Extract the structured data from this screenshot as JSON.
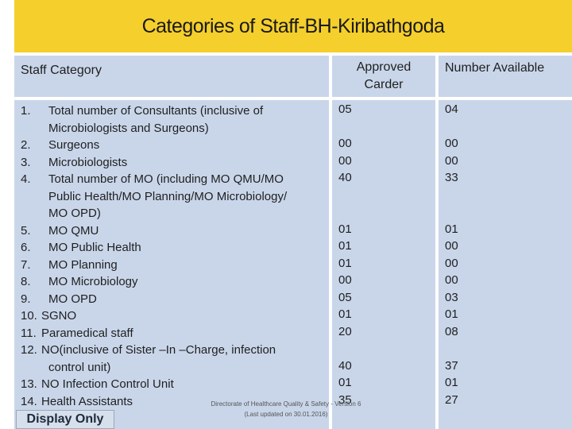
{
  "title": "Categories of Staff-BH-Kiribathgoda",
  "headers": {
    "category": "Staff Category",
    "approved_line1": "Approved",
    "approved_line2": "Carder",
    "available": "Number Available"
  },
  "rows": [
    {
      "num": "1.",
      "lines": [
        "Total number of Consultants (inclusive of",
        "Microbiologists and Surgeons)"
      ],
      "approved": "05",
      "available": "04"
    },
    {
      "num": "2.",
      "lines": [
        "Surgeons"
      ],
      "approved": "00",
      "available": "00"
    },
    {
      "num": "3.",
      "lines": [
        "Microbiologists"
      ],
      "approved": "00",
      "available": "00"
    },
    {
      "num": "4.",
      "lines": [
        "Total number of MO (including MO QMU/MO",
        "Public Health/MO Planning/MO Microbiology/",
        "MO OPD)"
      ],
      "approved": "40",
      "available": "33"
    },
    {
      "num": "5.",
      "lines": [
        "MO QMU"
      ],
      "approved": "01",
      "available": "01"
    },
    {
      "num": "6.",
      "lines": [
        "MO Public Health"
      ],
      "approved": "01",
      "available": "00"
    },
    {
      "num": "7.",
      "lines": [
        "MO Planning"
      ],
      "approved": "01",
      "available": "00"
    },
    {
      "num": "8.",
      "lines": [
        "MO Microbiology"
      ],
      "approved": "00",
      "available": "00"
    },
    {
      "num": "9.",
      "lines": [
        "MO OPD"
      ],
      "approved": "05",
      "available": "03"
    },
    {
      "num": "10.",
      "lines": [
        "SGNO"
      ],
      "approved": "01",
      "available": "01"
    },
    {
      "num": "11.",
      "lines": [
        "Paramedical staff"
      ],
      "approved": "20",
      "available": "08"
    },
    {
      "num": "12.",
      "lines": [
        "NO(inclusive of Sister –In –Charge, infection",
        "control unit)"
      ],
      "approved": "40",
      "available": "37"
    },
    {
      "num": "13.",
      "lines": [
        "NO Infection Control Unit"
      ],
      "approved": "01",
      "available": "01"
    },
    {
      "num": "14.",
      "lines": [
        "Health Assistants"
      ],
      "approved": "35",
      "available": "27"
    }
  ],
  "footer": {
    "line1": "Directorate of Healthcare Quality & Safety - Version 6",
    "line2": "(Last updated on 30.01.2016)"
  },
  "badge": "Display Only"
}
